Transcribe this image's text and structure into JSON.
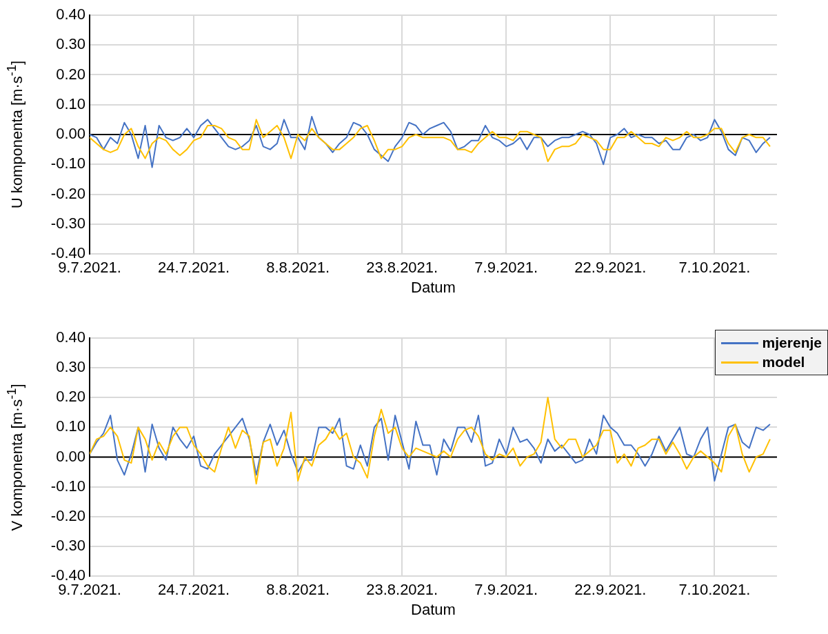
{
  "chart_data": [
    {
      "type": "line",
      "xlabel": "Datum",
      "ylabel": "U komponenta [m·s$^{-1}$]",
      "grid": true,
      "legend": false,
      "xlim": [
        "2021-07-09",
        "2021-10-16"
      ],
      "xticks": [
        {
          "value": "2021-07-09",
          "label": "9.7.2021."
        },
        {
          "value": "2021-07-24",
          "label": "24.7.2021."
        },
        {
          "value": "2021-08-08",
          "label": "8.8.2021."
        },
        {
          "value": "2021-08-23",
          "label": "23.8.2021."
        },
        {
          "value": "2021-09-07",
          "label": "7.9.2021."
        },
        {
          "value": "2021-09-22",
          "label": "22.9.2021."
        },
        {
          "value": "2021-10-07",
          "label": "7.10.2021."
        }
      ],
      "ylim": [
        -0.4,
        0.4
      ],
      "yticks": [
        {
          "value": -0.4,
          "label": "-0.40"
        },
        {
          "value": -0.3,
          "label": "-0.30"
        },
        {
          "value": -0.2,
          "label": "-0.20"
        },
        {
          "value": -0.1,
          "label": "-0.10"
        },
        {
          "value": 0,
          "label": "0.00"
        },
        {
          "value": 0.1,
          "label": "0.10"
        },
        {
          "value": 0.2,
          "label": "0.20"
        },
        {
          "value": 0.3,
          "label": "0.30"
        },
        {
          "value": 0.4,
          "label": "0.40"
        }
      ],
      "ref_lines": [
        {
          "axis": "y",
          "value": 0,
          "color": "#000000"
        }
      ],
      "x": [
        "2021-07-09",
        "2021-07-10",
        "2021-07-11",
        "2021-07-12",
        "2021-07-13",
        "2021-07-14",
        "2021-07-15",
        "2021-07-16",
        "2021-07-17",
        "2021-07-18",
        "2021-07-19",
        "2021-07-20",
        "2021-07-21",
        "2021-07-22",
        "2021-07-23",
        "2021-07-24",
        "2021-07-25",
        "2021-07-26",
        "2021-07-27",
        "2021-07-28",
        "2021-07-29",
        "2021-07-30",
        "2021-07-31",
        "2021-08-01",
        "2021-08-02",
        "2021-08-03",
        "2021-08-04",
        "2021-08-05",
        "2021-08-06",
        "2021-08-07",
        "2021-08-08",
        "2021-08-09",
        "2021-08-10",
        "2021-08-11",
        "2021-08-12",
        "2021-08-13",
        "2021-08-14",
        "2021-08-15",
        "2021-08-16",
        "2021-08-17",
        "2021-08-18",
        "2021-08-19",
        "2021-08-20",
        "2021-08-21",
        "2021-08-22",
        "2021-08-23",
        "2021-08-24",
        "2021-08-25",
        "2021-08-26",
        "2021-08-27",
        "2021-08-28",
        "2021-08-29",
        "2021-08-30",
        "2021-08-31",
        "2021-09-01",
        "2021-09-02",
        "2021-09-03",
        "2021-09-04",
        "2021-09-05",
        "2021-09-06",
        "2021-09-07",
        "2021-09-08",
        "2021-09-09",
        "2021-09-10",
        "2021-09-11",
        "2021-09-12",
        "2021-09-13",
        "2021-09-14",
        "2021-09-15",
        "2021-09-16",
        "2021-09-17",
        "2021-09-18",
        "2021-09-19",
        "2021-09-20",
        "2021-09-21",
        "2021-09-22",
        "2021-09-23",
        "2021-09-24",
        "2021-09-25",
        "2021-09-26",
        "2021-09-27",
        "2021-09-28",
        "2021-09-29",
        "2021-09-30",
        "2021-10-01",
        "2021-10-02",
        "2021-10-03",
        "2021-10-04",
        "2021-10-05",
        "2021-10-06",
        "2021-10-07",
        "2021-10-08",
        "2021-10-09",
        "2021-10-10",
        "2021-10-11",
        "2021-10-12",
        "2021-10-13",
        "2021-10-14",
        "2021-10-15"
      ],
      "series": [
        {
          "color": "#4472c4",
          "values": [
            0.0,
            -0.01,
            -0.05,
            -0.01,
            -0.03,
            0.04,
            0.0,
            -0.08,
            0.03,
            -0.11,
            0.03,
            -0.01,
            -0.02,
            -0.01,
            0.02,
            -0.01,
            0.03,
            0.05,
            0.02,
            -0.01,
            -0.04,
            -0.05,
            -0.04,
            -0.02,
            0.03,
            -0.04,
            -0.05,
            -0.03,
            0.05,
            -0.01,
            -0.01,
            -0.05,
            0.06,
            -0.01,
            -0.03,
            -0.06,
            -0.03,
            -0.01,
            0.04,
            0.03,
            0.0,
            -0.05,
            -0.07,
            -0.09,
            -0.04,
            -0.01,
            0.04,
            0.03,
            0.0,
            0.02,
            0.03,
            0.04,
            0.01,
            -0.05,
            -0.04,
            -0.02,
            -0.02,
            0.03,
            -0.01,
            -0.02,
            -0.04,
            -0.03,
            -0.01,
            -0.05,
            -0.01,
            -0.01,
            -0.04,
            -0.02,
            -0.01,
            -0.01,
            0.0,
            0.01,
            0.0,
            -0.03,
            -0.1,
            -0.01,
            0.0,
            0.02,
            -0.01,
            0.0,
            -0.01,
            -0.01,
            -0.03,
            -0.02,
            -0.05,
            -0.05,
            -0.01,
            0.0,
            -0.02,
            -0.01,
            0.05,
            0.01,
            -0.05,
            -0.07,
            -0.01,
            -0.02,
            -0.06,
            -0.03,
            -0.01
          ]
        },
        {
          "color": "#ffc000",
          "values": [
            -0.01,
            -0.03,
            -0.05,
            -0.06,
            -0.05,
            0.0,
            0.02,
            -0.04,
            -0.08,
            -0.03,
            -0.01,
            -0.02,
            -0.05,
            -0.07,
            -0.05,
            -0.02,
            -0.01,
            0.03,
            0.03,
            0.02,
            -0.01,
            -0.02,
            -0.05,
            -0.05,
            0.05,
            -0.01,
            0.01,
            0.03,
            -0.01,
            -0.08,
            0.0,
            -0.02,
            0.02,
            -0.01,
            -0.03,
            -0.05,
            -0.05,
            -0.03,
            -0.01,
            0.02,
            0.03,
            -0.02,
            -0.08,
            -0.05,
            -0.05,
            -0.04,
            -0.01,
            0.0,
            -0.01,
            -0.01,
            -0.01,
            -0.01,
            -0.02,
            -0.05,
            -0.05,
            -0.06,
            -0.03,
            -0.01,
            0.01,
            -0.01,
            -0.01,
            -0.02,
            0.01,
            0.01,
            0.0,
            -0.01,
            -0.09,
            -0.05,
            -0.04,
            -0.04,
            -0.03,
            0.0,
            -0.01,
            -0.02,
            -0.05,
            -0.05,
            -0.01,
            -0.01,
            0.01,
            -0.01,
            -0.03,
            -0.03,
            -0.04,
            -0.01,
            -0.02,
            -0.01,
            0.01,
            -0.01,
            -0.01,
            0.0,
            0.02,
            0.02,
            -0.03,
            -0.06,
            -0.01,
            0.0,
            -0.01,
            -0.01,
            -0.04
          ]
        }
      ]
    },
    {
      "type": "line",
      "xlabel": "Datum",
      "ylabel": "V komponenta [m·s$^{-1}$]",
      "grid": true,
      "legend": "top right",
      "xlim": [
        "2021-07-09",
        "2021-10-16"
      ],
      "xticks": [
        {
          "value": "2021-07-09",
          "label": "9.7.2021."
        },
        {
          "value": "2021-07-24",
          "label": "24.7.2021."
        },
        {
          "value": "2021-08-08",
          "label": "8.8.2021."
        },
        {
          "value": "2021-08-23",
          "label": "23.8.2021."
        },
        {
          "value": "2021-09-07",
          "label": "7.9.2021."
        },
        {
          "value": "2021-09-22",
          "label": "22.9.2021."
        },
        {
          "value": "2021-10-07",
          "label": "7.10.2021."
        }
      ],
      "ylim": [
        -0.4,
        0.4
      ],
      "yticks": [
        {
          "value": -0.4,
          "label": "-0.40"
        },
        {
          "value": -0.3,
          "label": "-0.30"
        },
        {
          "value": -0.2,
          "label": "-0.20"
        },
        {
          "value": -0.1,
          "label": "-0.10"
        },
        {
          "value": 0,
          "label": "0.00"
        },
        {
          "value": 0.1,
          "label": "0.10"
        },
        {
          "value": 0.2,
          "label": "0.20"
        },
        {
          "value": 0.3,
          "label": "0.30"
        },
        {
          "value": 0.4,
          "label": "0.40"
        }
      ],
      "ref_lines": [
        {
          "axis": "y",
          "value": 0,
          "color": "#000000"
        }
      ],
      "x": [
        "2021-07-09",
        "2021-07-10",
        "2021-07-11",
        "2021-07-12",
        "2021-07-13",
        "2021-07-14",
        "2021-07-15",
        "2021-07-16",
        "2021-07-17",
        "2021-07-18",
        "2021-07-19",
        "2021-07-20",
        "2021-07-21",
        "2021-07-22",
        "2021-07-23",
        "2021-07-24",
        "2021-07-25",
        "2021-07-26",
        "2021-07-27",
        "2021-07-28",
        "2021-07-29",
        "2021-07-30",
        "2021-07-31",
        "2021-08-01",
        "2021-08-02",
        "2021-08-03",
        "2021-08-04",
        "2021-08-05",
        "2021-08-06",
        "2021-08-07",
        "2021-08-08",
        "2021-08-09",
        "2021-08-10",
        "2021-08-11",
        "2021-08-12",
        "2021-08-13",
        "2021-08-14",
        "2021-08-15",
        "2021-08-16",
        "2021-08-17",
        "2021-08-18",
        "2021-08-19",
        "2021-08-20",
        "2021-08-21",
        "2021-08-22",
        "2021-08-23",
        "2021-08-24",
        "2021-08-25",
        "2021-08-26",
        "2021-08-27",
        "2021-08-28",
        "2021-08-29",
        "2021-08-30",
        "2021-08-31",
        "2021-09-01",
        "2021-09-02",
        "2021-09-03",
        "2021-09-04",
        "2021-09-05",
        "2021-09-06",
        "2021-09-07",
        "2021-09-08",
        "2021-09-09",
        "2021-09-10",
        "2021-09-11",
        "2021-09-12",
        "2021-09-13",
        "2021-09-14",
        "2021-09-15",
        "2021-09-16",
        "2021-09-17",
        "2021-09-18",
        "2021-09-19",
        "2021-09-20",
        "2021-09-21",
        "2021-09-22",
        "2021-09-23",
        "2021-09-24",
        "2021-09-25",
        "2021-09-26",
        "2021-09-27",
        "2021-09-28",
        "2021-09-29",
        "2021-09-30",
        "2021-10-01",
        "2021-10-02",
        "2021-10-03",
        "2021-10-04",
        "2021-10-05",
        "2021-10-06",
        "2021-10-07",
        "2021-10-08",
        "2021-10-09",
        "2021-10-10",
        "2021-10-11",
        "2021-10-12",
        "2021-10-13",
        "2021-10-14",
        "2021-10-15"
      ],
      "series": [
        {
          "name": "mjerenje",
          "color": "#4472c4",
          "values": [
            0.01,
            0.05,
            0.08,
            0.14,
            -0.01,
            -0.06,
            0.01,
            0.1,
            -0.05,
            0.11,
            0.03,
            -0.01,
            0.1,
            0.06,
            0.03,
            0.07,
            -0.03,
            -0.04,
            0.01,
            0.04,
            0.07,
            0.1,
            0.13,
            0.06,
            -0.06,
            0.05,
            0.11,
            0.04,
            0.09,
            0.01,
            -0.05,
            -0.01,
            -0.01,
            0.1,
            0.1,
            0.08,
            0.13,
            -0.03,
            -0.04,
            0.04,
            -0.03,
            0.1,
            0.13,
            -0.01,
            0.14,
            0.05,
            -0.04,
            0.12,
            0.04,
            0.04,
            -0.06,
            0.06,
            0.02,
            0.1,
            0.1,
            0.05,
            0.14,
            -0.03,
            -0.02,
            0.06,
            0.01,
            0.1,
            0.05,
            0.06,
            0.03,
            -0.02,
            0.06,
            0.02,
            0.04,
            0.01,
            -0.02,
            -0.01,
            0.06,
            0.01,
            0.14,
            0.1,
            0.08,
            0.04,
            0.04,
            0.01,
            -0.03,
            0.01,
            0.07,
            0.02,
            0.06,
            0.1,
            0.01,
            0.0,
            0.06,
            0.1,
            -0.08,
            0.01,
            0.1,
            0.11,
            0.05,
            0.03,
            0.1,
            0.09,
            0.11
          ]
        },
        {
          "name": "model",
          "color": "#ffc000",
          "values": [
            0.01,
            0.06,
            0.07,
            0.1,
            0.07,
            -0.01,
            -0.02,
            0.1,
            0.06,
            -0.01,
            0.05,
            0.01,
            0.07,
            0.1,
            0.1,
            0.04,
            0.01,
            -0.03,
            -0.05,
            0.03,
            0.1,
            0.03,
            0.09,
            0.07,
            -0.09,
            0.05,
            0.06,
            -0.03,
            0.03,
            0.15,
            -0.08,
            0.0,
            -0.03,
            0.04,
            0.06,
            0.1,
            0.06,
            0.08,
            0.0,
            -0.02,
            -0.07,
            0.07,
            0.16,
            0.08,
            0.1,
            0.03,
            0.0,
            0.03,
            0.02,
            0.01,
            0.0,
            0.02,
            0.0,
            0.06,
            0.09,
            0.1,
            0.07,
            0.01,
            -0.01,
            0.01,
            0.0,
            0.03,
            -0.03,
            0.0,
            0.01,
            0.05,
            0.2,
            0.06,
            0.03,
            0.06,
            0.06,
            0.0,
            0.02,
            0.04,
            0.09,
            0.09,
            -0.02,
            0.01,
            -0.03,
            0.03,
            0.04,
            0.06,
            0.06,
            0.01,
            0.05,
            0.01,
            -0.04,
            0.0,
            0.02,
            0.0,
            -0.02,
            -0.05,
            0.07,
            0.11,
            0.01,
            -0.05,
            0.0,
            0.01,
            0.06
          ]
        }
      ]
    }
  ]
}
